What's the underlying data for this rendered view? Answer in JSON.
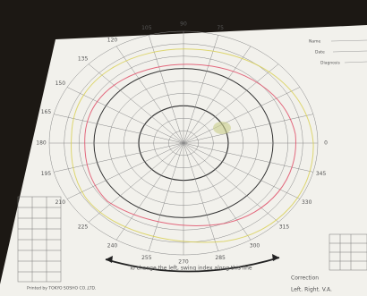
{
  "header": {
    "name_label": "Name",
    "date_label": "Date",
    "diagnosis_label": "Diagnosis"
  },
  "meridian_labels": [
    "75",
    "90",
    "105",
    "120",
    "135",
    "150",
    "165",
    "180",
    "195",
    "210",
    "225",
    "240",
    "255",
    "270",
    "285",
    "300",
    "315",
    "330",
    "345",
    "0"
  ],
  "instruction": "To change the left, swing index along this line",
  "footer": {
    "printer": "Printed by TOKYO SOSHO CO.,LTD.",
    "correction": "Correction",
    "eye": "Left.  Right.  V.A."
  }
}
